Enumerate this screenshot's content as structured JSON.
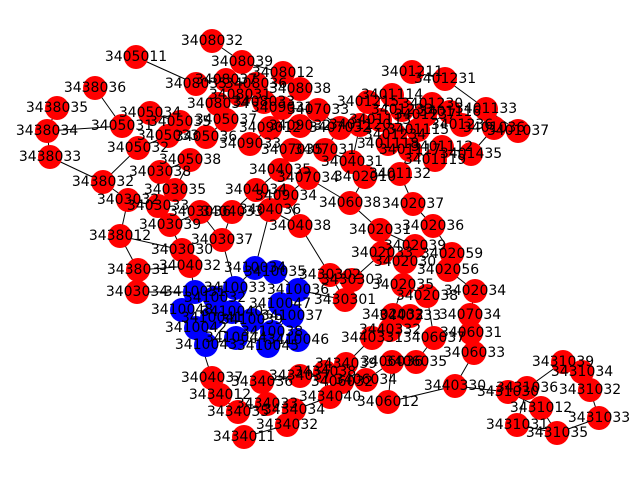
{
  "colors": {
    "red": "#ff0000",
    "blue": "#0000ff",
    "edge": "#000000",
    "label": "#000000"
  },
  "nodes": [
    {
      "id": "3408032",
      "color": "red"
    },
    {
      "id": "3405011",
      "color": "red"
    },
    {
      "id": "3408039",
      "color": "red"
    },
    {
      "id": "3408012",
      "color": "red"
    },
    {
      "id": "3438036",
      "color": "red"
    },
    {
      "id": "3438035",
      "color": "red"
    },
    {
      "id": "3438034",
      "color": "red"
    },
    {
      "id": "3438033",
      "color": "red"
    },
    {
      "id": "3438032",
      "color": "red"
    },
    {
      "id": "3438012",
      "color": "red"
    },
    {
      "id": "3438031",
      "color": "red"
    },
    {
      "id": "3403034",
      "color": "red"
    },
    {
      "id": "3401211",
      "color": "red"
    },
    {
      "id": "3401231",
      "color": "red"
    },
    {
      "id": "3401133",
      "color": "red"
    },
    {
      "id": "3401037",
      "color": "red"
    },
    {
      "id": "3401036",
      "color": "red"
    },
    {
      "id": "3401435",
      "color": "red"
    },
    {
      "id": "3401132",
      "color": "red"
    },
    {
      "id": "3402037",
      "color": "red"
    },
    {
      "id": "3402036",
      "color": "red"
    },
    {
      "id": "3402059",
      "color": "red"
    },
    {
      "id": "3402056",
      "color": "red"
    },
    {
      "id": "3402034",
      "color": "red"
    },
    {
      "id": "3407034",
      "color": "red"
    },
    {
      "id": "3406031",
      "color": "red"
    },
    {
      "id": "3406033",
      "color": "red"
    },
    {
      "id": "3406012",
      "color": "red"
    },
    {
      "id": "3431039",
      "color": "red"
    },
    {
      "id": "3431034",
      "color": "red"
    },
    {
      "id": "3431032",
      "color": "red"
    },
    {
      "id": "3431033",
      "color": "red"
    },
    {
      "id": "3431035",
      "color": "red"
    },
    {
      "id": "3431031",
      "color": "red"
    },
    {
      "id": "3431036",
      "color": "red"
    },
    {
      "id": "3431012",
      "color": "red"
    },
    {
      "id": "3434011",
      "color": "red"
    },
    {
      "id": "3434032",
      "color": "red"
    },
    {
      "id": "3434034",
      "color": "red"
    },
    {
      "id": "3434040",
      "color": "red"
    },
    {
      "id": "3434012",
      "color": "red"
    },
    {
      "id": "3402032",
      "color": "red"
    },
    {
      "id": "3408038",
      "color": "red"
    },
    {
      "id": "3402010",
      "color": "red"
    },
    {
      "id": "3440330",
      "color": "red"
    },
    {
      "id": "3401215",
      "color": "red"
    },
    {
      "id": "3409012",
      "color": "red"
    },
    {
      "id": "3404031",
      "color": "red"
    },
    {
      "id": "3407034b",
      "color": "red"
    },
    {
      "id": "3406038",
      "color": "red"
    },
    {
      "id": "3403030",
      "color": "red"
    },
    {
      "id": "3404037",
      "color": "red"
    },
    {
      "id": "3405034",
      "color": "red"
    },
    {
      "id": "3403032",
      "color": "red"
    },
    {
      "id": "3404032",
      "color": "red"
    },
    {
      "id": "3401237",
      "color": "red"
    },
    {
      "id": "3401234",
      "color": "red"
    },
    {
      "id": "3401112",
      "color": "red"
    },
    {
      "id": "3402031",
      "color": "red"
    },
    {
      "id": "3405038",
      "color": "red"
    },
    {
      "id": "3403039",
      "color": "red"
    },
    {
      "id": "3405033",
      "color": "red"
    },
    {
      "id": "3402030",
      "color": "red"
    },
    {
      "id": "3406037",
      "color": "red"
    },
    {
      "id": "3406035",
      "color": "red"
    },
    {
      "id": "3431030",
      "color": "red"
    },
    {
      "id": "3434033",
      "color": "red"
    },
    {
      "id": "3434035",
      "color": "red"
    },
    {
      "id": "3434036",
      "color": "red"
    },
    {
      "id": "3434037",
      "color": "red"
    },
    {
      "id": "3434038",
      "color": "red"
    },
    {
      "id": "3434039",
      "color": "red"
    },
    {
      "id": "3430301",
      "color": "red"
    },
    {
      "id": "3430302",
      "color": "red"
    },
    {
      "id": "3430303",
      "color": "red"
    },
    {
      "id": "3401230",
      "color": "red"
    },
    {
      "id": "3401233",
      "color": "red"
    },
    {
      "id": "3401236",
      "color": "red"
    },
    {
      "id": "3402033",
      "color": "red"
    },
    {
      "id": "3402035",
      "color": "red"
    },
    {
      "id": "3402038",
      "color": "red"
    },
    {
      "id": "3402039",
      "color": "red"
    },
    {
      "id": "3403033",
      "color": "red"
    },
    {
      "id": "3403035",
      "color": "red"
    },
    {
      "id": "3403036",
      "color": "red"
    },
    {
      "id": "3403037",
      "color": "red"
    },
    {
      "id": "3403038",
      "color": "red"
    },
    {
      "id": "3404033",
      "color": "red"
    },
    {
      "id": "3404034",
      "color": "red"
    },
    {
      "id": "3404035",
      "color": "red"
    },
    {
      "id": "3404036",
      "color": "red"
    },
    {
      "id": "3404038",
      "color": "red"
    },
    {
      "id": "3405031",
      "color": "red"
    },
    {
      "id": "3405032",
      "color": "red"
    },
    {
      "id": "3405035",
      "color": "red"
    },
    {
      "id": "3405036",
      "color": "red"
    },
    {
      "id": "3405037",
      "color": "red"
    },
    {
      "id": "3406032",
      "color": "red"
    },
    {
      "id": "3406034",
      "color": "red"
    },
    {
      "id": "3406036",
      "color": "red"
    },
    {
      "id": "3407031",
      "color": "red"
    },
    {
      "id": "3407032",
      "color": "red"
    },
    {
      "id": "3407033",
      "color": "red"
    },
    {
      "id": "3407035",
      "color": "red"
    },
    {
      "id": "3407036",
      "color": "red"
    },
    {
      "id": "3408031",
      "color": "red"
    },
    {
      "id": "3408033",
      "color": "red"
    },
    {
      "id": "3408034",
      "color": "red"
    },
    {
      "id": "3408035",
      "color": "red"
    },
    {
      "id": "3408036",
      "color": "red"
    },
    {
      "id": "3408037",
      "color": "red"
    },
    {
      "id": "3409031",
      "color": "red"
    },
    {
      "id": "3409032",
      "color": "red"
    },
    {
      "id": "3409033",
      "color": "red"
    },
    {
      "id": "3409034",
      "color": "red"
    },
    {
      "id": "3440331",
      "color": "red"
    },
    {
      "id": "3440332",
      "color": "red"
    },
    {
      "id": "3440333",
      "color": "red"
    },
    {
      "id": "3401113",
      "color": "red"
    },
    {
      "id": "3401114",
      "color": "red"
    },
    {
      "id": "3401115",
      "color": "red"
    },
    {
      "id": "3401116",
      "color": "red"
    },
    {
      "id": "3401117",
      "color": "red"
    },
    {
      "id": "3401118",
      "color": "red"
    },
    {
      "id": "3401119",
      "color": "red"
    },
    {
      "id": "3401120",
      "color": "red"
    },
    {
      "id": "3410031",
      "color": "blue"
    },
    {
      "id": "3410032",
      "color": "blue"
    },
    {
      "id": "3410033",
      "color": "blue"
    },
    {
      "id": "3410034",
      "color": "blue"
    },
    {
      "id": "3410035",
      "color": "blue"
    },
    {
      "id": "3410036",
      "color": "blue"
    },
    {
      "id": "3410037",
      "color": "blue"
    },
    {
      "id": "3410038",
      "color": "blue"
    },
    {
      "id": "3410039",
      "color": "blue"
    },
    {
      "id": "3410040",
      "color": "blue"
    },
    {
      "id": "3410041",
      "color": "blue"
    },
    {
      "id": "3410042",
      "color": "blue"
    },
    {
      "id": "3410043",
      "color": "blue"
    },
    {
      "id": "3410044",
      "color": "blue"
    },
    {
      "id": "3410045",
      "color": "blue"
    },
    {
      "id": "3410046",
      "color": "blue"
    },
    {
      "id": "3410047",
      "color": "blue"
    },
    {
      "id": "3410048",
      "color": "blue"
    }
  ]
}
